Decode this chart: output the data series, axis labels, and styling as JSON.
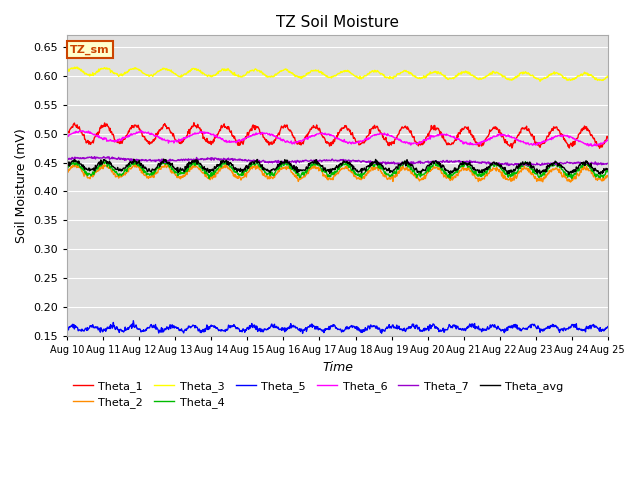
{
  "title": "TZ Soil Moisture",
  "xlabel": "Time",
  "ylabel": "Soil Moisture (mV)",
  "ylim": [
    0.15,
    0.67
  ],
  "yticks": [
    0.15,
    0.2,
    0.25,
    0.3,
    0.35,
    0.4,
    0.45,
    0.5,
    0.55,
    0.6,
    0.65
  ],
  "n_points": 1000,
  "series": {
    "Theta_1": {
      "color": "#ff0000",
      "base": 0.5,
      "amp": 0.015,
      "freq": 1.2,
      "trend": -0.006,
      "noise": 0.002
    },
    "Theta_2": {
      "color": "#ff8c00",
      "base": 0.435,
      "amp": 0.01,
      "freq": 1.2,
      "trend": -0.006,
      "noise": 0.002
    },
    "Theta_3": {
      "color": "#ffff00",
      "base": 0.608,
      "amp": 0.006,
      "freq": 1.2,
      "trend": -0.01,
      "noise": 0.001
    },
    "Theta_4": {
      "color": "#00bb00",
      "base": 0.44,
      "amp": 0.01,
      "freq": 1.2,
      "trend": -0.004,
      "noise": 0.002
    },
    "Theta_5": {
      "color": "#0000ff",
      "base": 0.163,
      "amp": 0.004,
      "freq": 1.8,
      "trend": 0.001,
      "noise": 0.002
    },
    "Theta_6": {
      "color": "#ff00ff",
      "base": 0.496,
      "amp": 0.008,
      "freq": 0.6,
      "trend": -0.008,
      "noise": 0.001
    },
    "Theta_7": {
      "color": "#9900cc",
      "base": 0.457,
      "amp": 0.002,
      "freq": 0.3,
      "trend": -0.01,
      "noise": 0.001
    },
    "Theta_avg": {
      "color": "#000000",
      "base": 0.445,
      "amp": 0.008,
      "freq": 1.2,
      "trend": -0.004,
      "noise": 0.002
    }
  },
  "legend_box_label": "TZ_sm",
  "legend_box_facecolor": "#ffffcc",
  "legend_box_edgecolor": "#cc4400",
  "plot_bg": "#e0e0e0",
  "fig_bg": "#ffffff",
  "figsize": [
    6.4,
    4.8
  ],
  "dpi": 100
}
